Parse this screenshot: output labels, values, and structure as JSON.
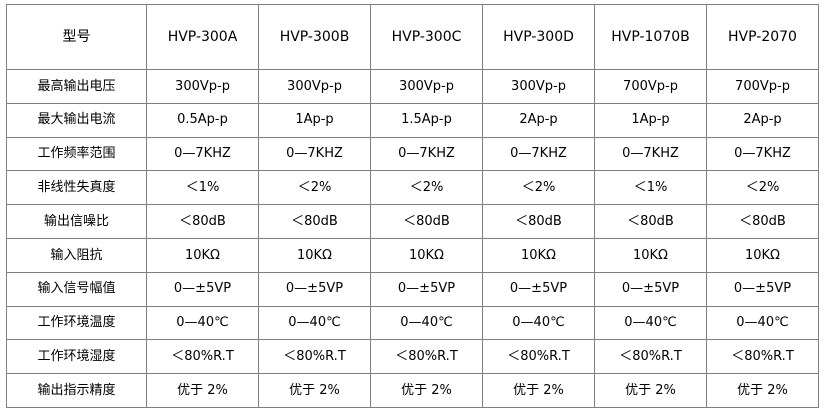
{
  "table": {
    "header": {
      "label": "型号",
      "models": [
        "HVP-300A",
        "HVP-300B",
        "HVP-300C",
        "HVP-300D",
        "HVP-1070B",
        "HVP-2070"
      ]
    },
    "rows": [
      {
        "label": "最高输出电压",
        "values": [
          "300Vp-p",
          "300Vp-p",
          "300Vp-p",
          "300Vp-p",
          "700Vp-p",
          "700Vp-p"
        ]
      },
      {
        "label": "最大输出电流",
        "values": [
          "0.5Ap-p",
          "1Ap-p",
          "1.5Ap-p",
          "2Ap-p",
          "1Ap-p",
          "2Ap-p"
        ]
      },
      {
        "label": "工作频率范围",
        "values": [
          "0—7KHZ",
          "0—7KHZ",
          "0—7KHZ",
          "0—7KHZ",
          "0—7KHZ",
          "0—7KHZ"
        ]
      },
      {
        "label": "非线性失真度",
        "values": [
          "＜1%",
          "＜2%",
          "＜2%",
          "＜2%",
          "＜1%",
          "＜2%"
        ]
      },
      {
        "label": "输出信噪比",
        "values": [
          "＜80dB",
          "＜80dB",
          "＜80dB",
          "＜80dB",
          "＜80dB",
          "＜80dB"
        ]
      },
      {
        "label": "输入阻抗",
        "values": [
          "10KΩ",
          "10KΩ",
          "10KΩ",
          "10KΩ",
          "10KΩ",
          "10KΩ"
        ]
      },
      {
        "label": "输入信号幅值",
        "values": [
          "0—±5VP",
          "0—±5VP",
          "0—±5VP",
          "0—±5VP",
          "0—±5VP",
          "0—±5VP"
        ]
      },
      {
        "label": "工作环境温度",
        "values": [
          "0—40℃",
          "0—40℃",
          "0—40℃",
          "0—40℃",
          "0—40℃",
          "0—40℃"
        ]
      },
      {
        "label": "工作环境湿度",
        "values": [
          "＜80%R.T",
          "＜80%R.T",
          "＜80%R.T",
          "＜80%R.T",
          "＜80%R.T",
          "＜80%R.T"
        ]
      },
      {
        "label": "输出指示精度",
        "values": [
          "优于 2%",
          "优于 2%",
          "优于 2%",
          "优于 2%",
          "优于 2%",
          "优于 2%"
        ]
      }
    ]
  }
}
